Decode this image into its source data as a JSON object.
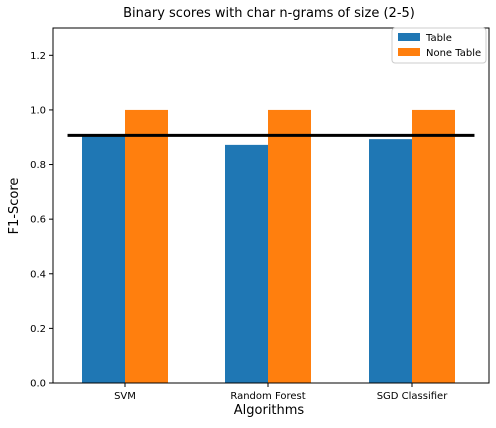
{
  "chart_data": {
    "type": "bar",
    "title": "Binary scores with char n-grams of size (2-5)",
    "xlabel": "Algorithms",
    "ylabel": "F1-Score",
    "categories": [
      "SVM",
      "Random Forest",
      "SGD Classifier"
    ],
    "series": [
      {
        "name": "Table",
        "color": "#1f77b4",
        "values": [
          0.905,
          0.872,
          0.893
        ]
      },
      {
        "name": "None Table",
        "color": "#ff7f0e",
        "values": [
          1.0,
          1.0,
          1.0
        ]
      }
    ],
    "reference_line": {
      "value": 0.907,
      "color": "#000000"
    },
    "ylim": [
      0,
      1.3
    ],
    "yticks": [
      0.0,
      0.2,
      0.4,
      0.6,
      0.8,
      1.0,
      1.2
    ],
    "ytick_labels": [
      "0.0",
      "0.2",
      "0.4",
      "0.6",
      "0.8",
      "1.0",
      "1.2"
    ],
    "grid": false,
    "legend_position": "top-right"
  }
}
